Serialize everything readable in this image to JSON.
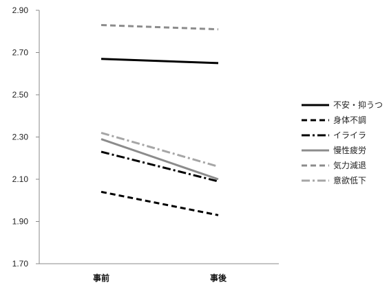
{
  "chart_data": {
    "type": "line",
    "title": "",
    "xlabel": "",
    "ylabel": "",
    "categories": [
      "事前",
      "事後"
    ],
    "ylim": [
      1.7,
      2.9
    ],
    "yticks": [
      "1.70",
      "1.90",
      "2.10",
      "2.30",
      "2.50",
      "2.70",
      "2.90"
    ],
    "grid": false,
    "legend_position": "right",
    "series": [
      {
        "name": "不安・抑うつ",
        "values": [
          2.67,
          2.65
        ],
        "color": "#000000",
        "dash": "solid"
      },
      {
        "name": "身体不調",
        "values": [
          2.04,
          1.93
        ],
        "color": "#000000",
        "dash": "dash"
      },
      {
        "name": "イライラ",
        "values": [
          2.23,
          2.09
        ],
        "color": "#000000",
        "dash": "dashdot"
      },
      {
        "name": "慢性疲労",
        "values": [
          2.29,
          2.1
        ],
        "color": "#8c8c8c",
        "dash": "solid"
      },
      {
        "name": "気力減退",
        "values": [
          2.83,
          2.81
        ],
        "color": "#8c8c8c",
        "dash": "dash"
      },
      {
        "name": "意欲低下",
        "values": [
          2.32,
          2.16
        ],
        "color": "#a6a6a6",
        "dash": "dashdot"
      }
    ]
  }
}
